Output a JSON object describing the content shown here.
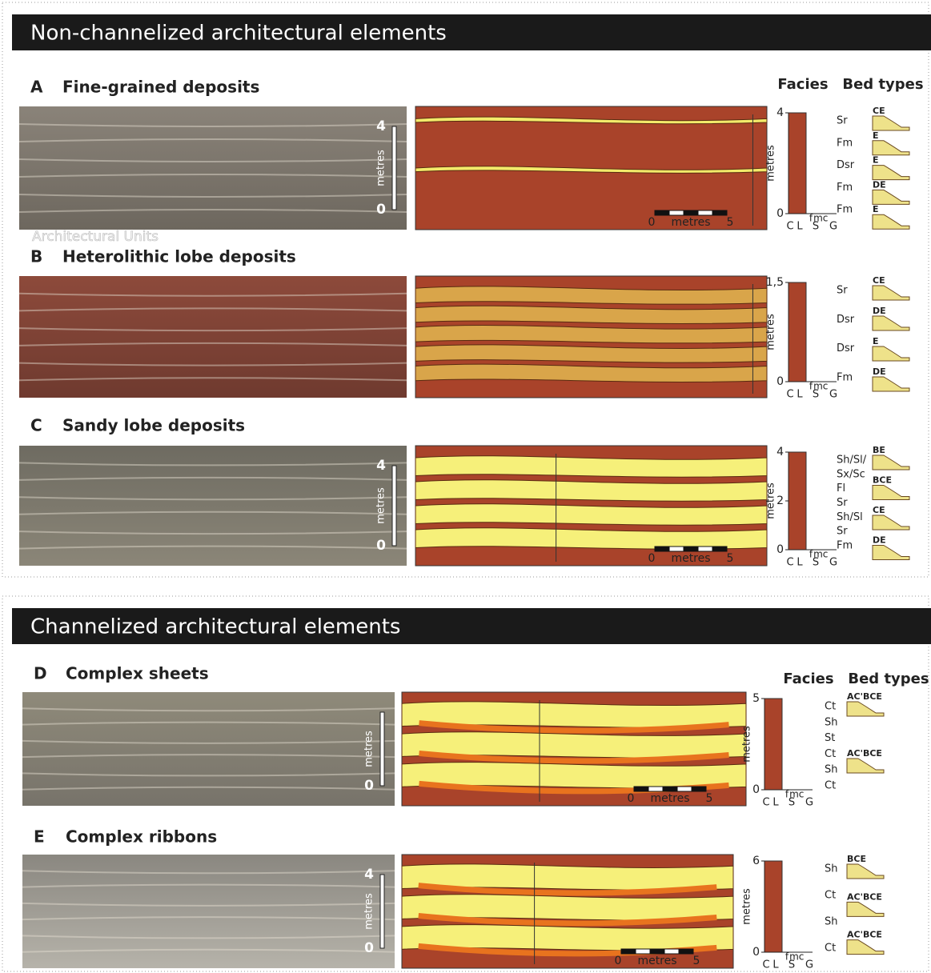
{
  "watermark": "Architectural Units",
  "sections": [
    {
      "title": "Non-channelized architectural elements",
      "facies_header": "Facies",
      "bed_types_header": "Bed types",
      "panels": [
        {
          "letter": "A",
          "title": "Fine-grained deposits",
          "photo_scale": {
            "top": "4",
            "unit": "metres",
            "bottom": "0"
          },
          "diagram_scale": {
            "start": "0",
            "unit": "metres",
            "end": "5"
          },
          "log": {
            "ticks": [
              "0",
              "4"
            ],
            "unit": "metres",
            "grain": [
              "C",
              "L",
              "S",
              "G"
            ],
            "sand": [
              "f",
              "m",
              "c"
            ]
          },
          "facies": [
            "Sr",
            "Fm",
            "Dsr",
            "Fm",
            "Fm"
          ],
          "bed_types": [
            "CE",
            "E",
            "E",
            "DE",
            "E"
          ]
        },
        {
          "letter": "B",
          "title": "Heterolithic lobe deposits",
          "log": {
            "ticks": [
              "0",
              "1,5"
            ],
            "unit": "metres",
            "grain": [
              "C",
              "L",
              "S",
              "G"
            ],
            "sand": [
              "f",
              "m",
              "c"
            ]
          },
          "facies": [
            "Sr",
            "Dsr",
            "Dsr",
            "Fm"
          ],
          "bed_types": [
            "CE",
            "DE",
            "E",
            "DE"
          ]
        },
        {
          "letter": "C",
          "title": "Sandy lobe deposits",
          "photo_scale": {
            "top": "4",
            "unit": "metres",
            "bottom": "0"
          },
          "diagram_scale": {
            "start": "0",
            "unit": "metres",
            "end": "5"
          },
          "log": {
            "ticks": [
              "0",
              "2",
              "4"
            ],
            "unit": "metres",
            "grain": [
              "C",
              "L",
              "S",
              "G"
            ],
            "sand": [
              "f",
              "m",
              "c"
            ]
          },
          "facies": [
            "Sh/Sl/",
            "Sx/Sc",
            "Fl",
            "Sr",
            "Sh/Sl",
            "Sr",
            "Fm"
          ],
          "bed_types": [
            "BE",
            "BCE",
            "CE",
            "DE"
          ]
        }
      ]
    },
    {
      "title": "Channelized architectural elements",
      "facies_header": "Facies",
      "bed_types_header": "Bed types",
      "panels": [
        {
          "letter": "D",
          "title": "Complex sheets",
          "photo_scale": {
            "unit": "metres",
            "bottom": "0"
          },
          "diagram_scale": {
            "start": "0",
            "unit": "metres",
            "end": "5"
          },
          "log": {
            "ticks": [
              "0",
              "5"
            ],
            "unit": "metres",
            "grain": [
              "C",
              "L",
              "S",
              "G"
            ],
            "sand": [
              "f",
              "m",
              "c"
            ]
          },
          "facies": [
            "Ct",
            "Sh",
            "St",
            "Ct",
            "Sh",
            "Ct"
          ],
          "bed_types": [
            "AC'BCE",
            "AC'BCE"
          ]
        },
        {
          "letter": "E",
          "title": "Complex ribbons",
          "photo_scale": {
            "top": "4",
            "unit": "metres",
            "bottom": "0"
          },
          "diagram_scale": {
            "start": "0",
            "unit": "metres",
            "end": "5"
          },
          "log": {
            "ticks": [
              "0",
              "6"
            ],
            "unit": "metres",
            "grain": [
              "C",
              "L",
              "S",
              "G"
            ],
            "sand": [
              "f",
              "m",
              "c"
            ]
          },
          "facies": [
            "Sh",
            "Ct",
            "Sh",
            "Ct"
          ],
          "bed_types": [
            "BCE",
            "AC'BCE",
            "AC'BCE"
          ]
        }
      ]
    }
  ]
}
